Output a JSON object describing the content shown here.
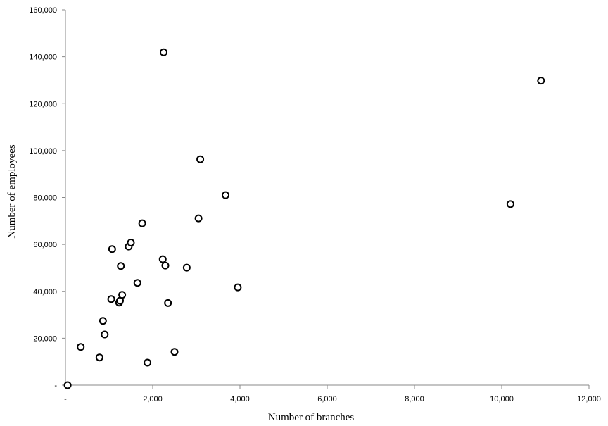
{
  "chart_data": {
    "type": "scatter",
    "xlabel": "Number of branches",
    "ylabel": "Number of employees",
    "xlim": [
      0,
      12000
    ],
    "ylim": [
      0,
      160000
    ],
    "x_ticks": [
      {
        "value": 0,
        "label": "-"
      },
      {
        "value": 2000,
        "label": "2,000"
      },
      {
        "value": 4000,
        "label": "4,000"
      },
      {
        "value": 6000,
        "label": "6,000"
      },
      {
        "value": 8000,
        "label": "8,000"
      },
      {
        "value": 10000,
        "label": "10,000"
      },
      {
        "value": 12000,
        "label": "12,000"
      }
    ],
    "y_ticks": [
      {
        "value": 0,
        "label": "-"
      },
      {
        "value": 20000,
        "label": "20,000"
      },
      {
        "value": 40000,
        "label": "40,000"
      },
      {
        "value": 60000,
        "label": "60,000"
      },
      {
        "value": 80000,
        "label": "80,000"
      },
      {
        "value": 100000,
        "label": "100,000"
      },
      {
        "value": 120000,
        "label": "120,000"
      },
      {
        "value": 140000,
        "label": "140,000"
      },
      {
        "value": 160000,
        "label": "160,000"
      }
    ],
    "grid": false,
    "legend": "none",
    "marker": "hollow-circle",
    "points": [
      {
        "x": 50,
        "y": 0
      },
      {
        "x": 350,
        "y": 16300
      },
      {
        "x": 780,
        "y": 11800
      },
      {
        "x": 860,
        "y": 27400
      },
      {
        "x": 900,
        "y": 21600
      },
      {
        "x": 1050,
        "y": 36700
      },
      {
        "x": 1070,
        "y": 58000
      },
      {
        "x": 1230,
        "y": 35200
      },
      {
        "x": 1250,
        "y": 36000
      },
      {
        "x": 1270,
        "y": 50800
      },
      {
        "x": 1300,
        "y": 38500
      },
      {
        "x": 1450,
        "y": 59100
      },
      {
        "x": 1500,
        "y": 60800
      },
      {
        "x": 1650,
        "y": 43600
      },
      {
        "x": 1760,
        "y": 69000
      },
      {
        "x": 1880,
        "y": 9600
      },
      {
        "x": 2230,
        "y": 53700
      },
      {
        "x": 2250,
        "y": 141900
      },
      {
        "x": 2290,
        "y": 51000
      },
      {
        "x": 2350,
        "y": 35000
      },
      {
        "x": 2500,
        "y": 14200
      },
      {
        "x": 2780,
        "y": 50100
      },
      {
        "x": 3050,
        "y": 71100
      },
      {
        "x": 3090,
        "y": 96300
      },
      {
        "x": 3670,
        "y": 81000
      },
      {
        "x": 3950,
        "y": 41700
      },
      {
        "x": 10200,
        "y": 77200
      },
      {
        "x": 10900,
        "y": 129800
      }
    ]
  }
}
